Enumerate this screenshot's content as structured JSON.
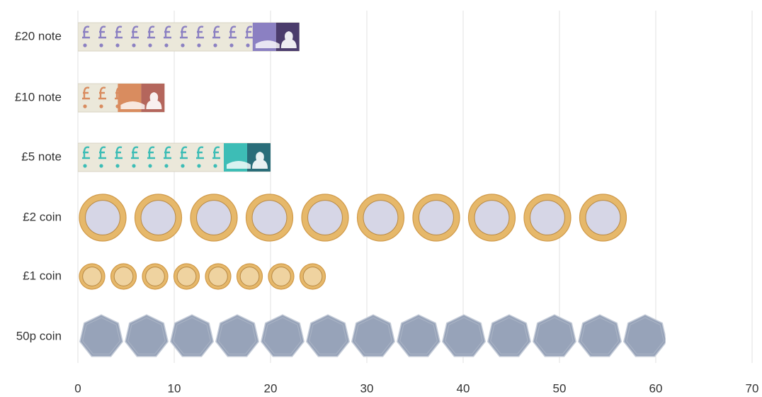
{
  "chart_data": {
    "type": "pictorial-bar",
    "categories": [
      "£20 note",
      "£10 note",
      "£5 note",
      "£2 coin",
      "£1 coin",
      "50p coin"
    ],
    "values": [
      23,
      9,
      20,
      57,
      26,
      61
    ],
    "colors": [
      "#8b80c2",
      "#d98c5f",
      "#3dbdb6",
      "#e6b86a",
      "#e6b86a",
      "#97a3b9"
    ],
    "xlim": [
      0,
      70
    ],
    "xticks": [
      0,
      10,
      20,
      30,
      40,
      50,
      60,
      70
    ],
    "grid": true
  }
}
